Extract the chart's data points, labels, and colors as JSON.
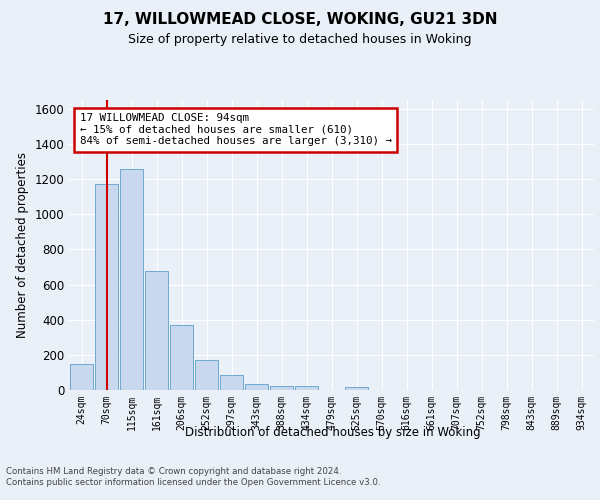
{
  "title1": "17, WILLOWMEAD CLOSE, WOKING, GU21 3DN",
  "title2": "Size of property relative to detached houses in Woking",
  "xlabel": "Distribution of detached houses by size in Woking",
  "ylabel": "Number of detached properties",
  "bin_labels": [
    "24sqm",
    "70sqm",
    "115sqm",
    "161sqm",
    "206sqm",
    "252sqm",
    "297sqm",
    "343sqm",
    "388sqm",
    "434sqm",
    "479sqm",
    "525sqm",
    "570sqm",
    "616sqm",
    "661sqm",
    "707sqm",
    "752sqm",
    "798sqm",
    "843sqm",
    "889sqm",
    "934sqm"
  ],
  "bar_heights": [
    147,
    1170,
    1260,
    675,
    370,
    168,
    88,
    35,
    25,
    20,
    0,
    15,
    0,
    0,
    0,
    0,
    0,
    0,
    0,
    0,
    0
  ],
  "bar_color": "#c9d9ed",
  "bar_edge_color": "#6fa8d0",
  "annotation_line1": "17 WILLOWMEAD CLOSE: 94sqm",
  "annotation_line2": "← 15% of detached houses are smaller (610)",
  "annotation_line3": "84% of semi-detached houses are larger (3,310) →",
  "ylim": [
    0,
    1650
  ],
  "yticks": [
    0,
    200,
    400,
    600,
    800,
    1000,
    1200,
    1400,
    1600
  ],
  "background_color": "#eaf0f8",
  "plot_bg_color": "#eaf0f8",
  "footer_text": "Contains HM Land Registry data © Crown copyright and database right 2024.\nContains public sector information licensed under the Open Government Licence v3.0.",
  "annotation_box_color": "#ffffff",
  "annotation_box_edge": "#cc0000",
  "red_line_color": "#cc0000"
}
